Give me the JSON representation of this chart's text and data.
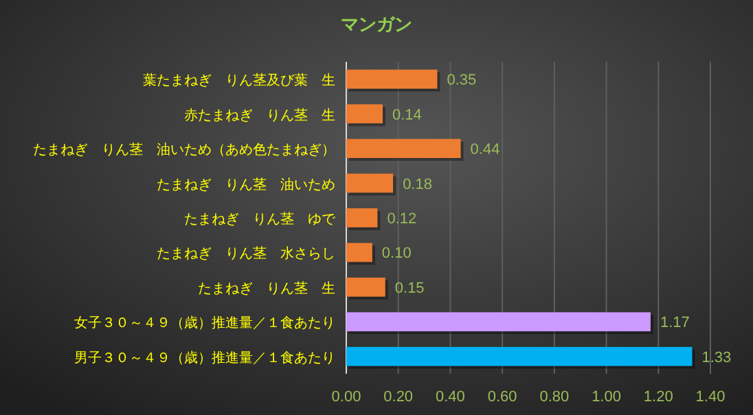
{
  "chart_data": {
    "type": "bar",
    "orientation": "horizontal",
    "title": "マンガン",
    "categories": [
      "葉たまねぎ　りん茎及び葉　生",
      "赤たまねぎ　りん茎　生",
      "たまねぎ　りん茎　油いため（あめ色たまねぎ）",
      "たまねぎ　りん茎　油いため",
      "たまねぎ　りん茎　ゆで",
      "たまねぎ　りん茎　水さらし",
      "たまねぎ　りん茎　生",
      "女子３０～４９（歳）推進量／１食あたり",
      "男子３０～４９（歳）推進量／１食あたり"
    ],
    "values": [
      0.35,
      0.14,
      0.44,
      0.18,
      0.12,
      0.1,
      0.15,
      1.17,
      1.33
    ],
    "colors": [
      "#ed7d31",
      "#ed7d31",
      "#ed7d31",
      "#ed7d31",
      "#ed7d31",
      "#ed7d31",
      "#ed7d31",
      "#cc99ff",
      "#00b0f0"
    ],
    "xlim": [
      0,
      1.4
    ],
    "xticks": [
      {
        "value": 0,
        "label": "0.00"
      },
      {
        "value": 0.2,
        "label": "0.20"
      },
      {
        "value": 0.4,
        "label": "0.40"
      },
      {
        "value": 0.6,
        "label": "0.60"
      },
      {
        "value": 0.8,
        "label": "0.80"
      },
      {
        "value": 1.0,
        "label": "1.00"
      },
      {
        "value": 1.2,
        "label": "1.20"
      },
      {
        "value": 1.4,
        "label": "1.40"
      }
    ],
    "value_labels": [
      "0.35",
      "0.14",
      "0.44",
      "0.18",
      "0.12",
      "0.10",
      "0.15",
      "1.17",
      "1.33"
    ],
    "grid": "x"
  }
}
